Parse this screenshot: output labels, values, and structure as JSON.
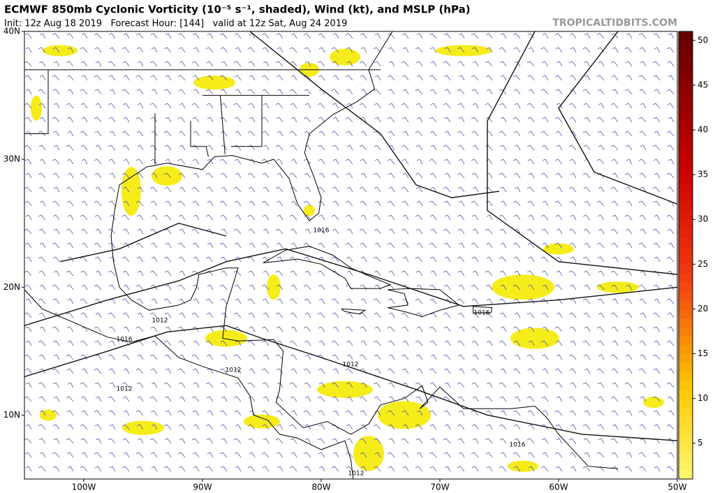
{
  "header": {
    "title": "ECMWF 850mb Cyclonic Vorticity (10⁻⁵ s⁻¹, shaded), Wind (kt), and MSLP (hPa)",
    "subtitle": "Init: 12z Aug 18 2019   Forecast Hour: [144]   valid at 12z Sat, Aug 24 2019",
    "watermark": "TROPICALTIDBITS.COM"
  },
  "map": {
    "lon_range": [
      -105,
      -50
    ],
    "lat_range": [
      5,
      40
    ],
    "lon_ticks": [
      {
        "value": -100,
        "label": "100W"
      },
      {
        "value": -90,
        "label": "90W"
      },
      {
        "value": -80,
        "label": "80W"
      },
      {
        "value": -70,
        "label": "70W"
      },
      {
        "value": -60,
        "label": "60W"
      },
      {
        "value": -50,
        "label": "50W"
      }
    ],
    "lat_ticks": [
      {
        "value": 40,
        "label": "40N"
      },
      {
        "value": 30,
        "label": "30N"
      },
      {
        "value": 20,
        "label": "20N"
      },
      {
        "value": 10,
        "label": "10N"
      }
    ],
    "isobar_labels": [
      "1016",
      "1016",
      "1016",
      "1016",
      "1012",
      "1012",
      "1012",
      "1012",
      "1012"
    ]
  },
  "colorbar": {
    "range": [
      1,
      51
    ],
    "ticks": [
      5,
      10,
      15,
      20,
      25,
      30,
      35,
      40,
      45,
      50
    ]
  }
}
